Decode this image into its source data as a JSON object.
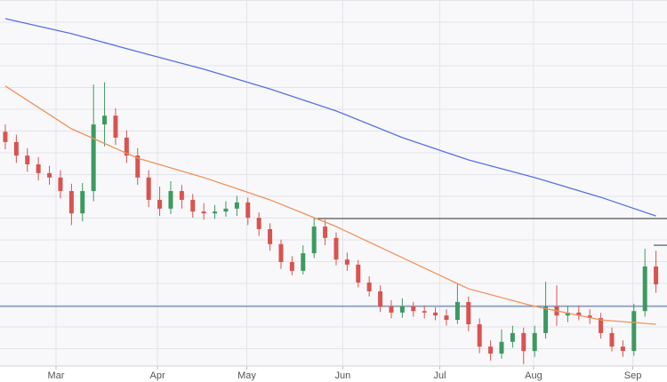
{
  "chart_data": {
    "type": "candlestick",
    "xlim": [
      -0.48,
      60.0
    ],
    "ylim": [
      0,
      100
    ],
    "xticks": [
      {
        "value": 4.6,
        "label": "Mar"
      },
      {
        "value": 13.8,
        "label": "Apr"
      },
      {
        "value": 21.9,
        "label": "May"
      },
      {
        "value": 30.6,
        "label": "Jun"
      },
      {
        "value": 39.4,
        "label": "Jul"
      },
      {
        "value": 47.9,
        "label": "Aug"
      },
      {
        "value": 56.9,
        "label": "Sep"
      }
    ],
    "up_color": "#3c9a5f",
    "down_color": "#d9534f",
    "open": [
      64.0,
      61.2,
      57.5,
      55.1,
      52.7,
      51.5,
      47.8,
      41.7,
      47.8,
      66.0,
      68.4,
      62.4,
      57.5,
      51.5,
      45.4,
      43.0,
      47.8,
      45.4,
      42.2,
      41.7,
      42.2,
      43.0,
      44.7,
      40.5,
      37.4,
      33.3,
      28.4,
      26.0,
      30.8,
      38.1,
      35.0,
      29.1,
      27.7,
      22.8,
      20.4,
      16.3,
      14.6,
      16.3,
      15.0,
      14.6,
      13.8,
      12.6,
      17.5,
      11.4,
      5.3,
      3.4,
      6.6,
      9.0,
      4.1,
      9.0,
      16.3,
      13.8,
      14.6,
      13.8,
      13.1,
      9.0,
      5.3,
      4.1,
      15.0,
      27.2
    ],
    "high": [
      66.0,
      63.2,
      59.5,
      57.1,
      54.7,
      53.5,
      49.8,
      50.0,
      76.9,
      77.5,
      70.4,
      64.4,
      59.5,
      53.5,
      49.0,
      50.5,
      49.5,
      47.0,
      44.5,
      44.0,
      45.0,
      46.5,
      46.0,
      42.0,
      39.0,
      34.5,
      30.0,
      33.0,
      40.3,
      40.0,
      36.5,
      31.0,
      29.0,
      24.5,
      22.0,
      18.0,
      18.5,
      17.5,
      16.5,
      16.0,
      15.5,
      22.5,
      19.0,
      13.0,
      7.0,
      10.0,
      11.0,
      10.5,
      11.0,
      23.0,
      22.0,
      16.5,
      16.5,
      15.5,
      14.5,
      10.5,
      7.0,
      17.0,
      32.0,
      31.5
    ],
    "low": [
      59.2,
      55.5,
      53.1,
      50.7,
      49.5,
      45.8,
      38.5,
      39.5,
      45.0,
      60.0,
      60.4,
      55.5,
      49.5,
      43.4,
      41.0,
      41.5,
      43.0,
      40.5,
      40.0,
      40.2,
      40.8,
      41.0,
      38.5,
      35.5,
      31.5,
      26.5,
      24.8,
      25.0,
      29.5,
      33.0,
      27.5,
      26.0,
      21.5,
      19.0,
      14.8,
      13.0,
      13.2,
      13.5,
      13.0,
      12.5,
      11.0,
      11.5,
      9.5,
      3.5,
      1.5,
      2.0,
      5.0,
      0.5,
      2.5,
      7.5,
      11.0,
      12.0,
      12.5,
      11.5,
      7.5,
      4.0,
      2.5,
      2.8,
      13.5,
      20.0
    ],
    "close": [
      61.2,
      57.5,
      55.1,
      52.7,
      51.5,
      47.8,
      41.7,
      47.8,
      66.0,
      68.4,
      62.4,
      57.5,
      51.5,
      45.4,
      43.0,
      47.8,
      45.4,
      42.2,
      41.7,
      42.2,
      43.0,
      44.7,
      40.5,
      37.4,
      33.3,
      28.4,
      26.0,
      30.8,
      38.1,
      35.0,
      29.1,
      27.7,
      22.8,
      20.4,
      16.3,
      14.6,
      16.3,
      15.0,
      14.6,
      13.8,
      12.6,
      17.5,
      11.4,
      5.3,
      3.4,
      6.6,
      9.0,
      4.1,
      9.0,
      16.3,
      13.8,
      14.6,
      13.8,
      13.1,
      9.0,
      5.3,
      4.1,
      15.0,
      27.2,
      22.3
    ],
    "series": [
      {
        "color": "#5b6ee8",
        "x": [
          0,
          6,
          12,
          18,
          24,
          30,
          36,
          42,
          48,
          54,
          59
        ],
        "values": [
          94.9,
          90.8,
          85.9,
          81.1,
          75.7,
          69.7,
          62.4,
          56.3,
          51.5,
          46.1,
          41.0
        ]
      },
      {
        "color": "#f0915a",
        "x": [
          0,
          6,
          12,
          18,
          24,
          30,
          36,
          42,
          48,
          54,
          59
        ],
        "values": [
          76.5,
          64.8,
          56.8,
          51.5,
          45.4,
          38.1,
          29.6,
          21.1,
          16.3,
          12.6,
          11.4
        ]
      }
    ],
    "levels": [
      {
        "value": 40.3,
        "start": 28,
        "color": "#333333"
      },
      {
        "value": 33.0,
        "start": 58.8,
        "color": "#333333"
      },
      {
        "value": 16.3,
        "start": -0.48,
        "color": "#4a6d9c"
      }
    ]
  }
}
